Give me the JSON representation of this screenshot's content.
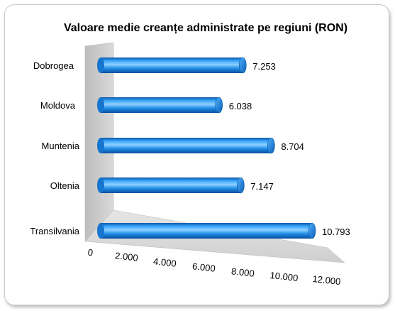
{
  "chart_data": {
    "type": "bar",
    "orientation": "horizontal",
    "title": "Valoare medie creanțe administrate pe regiuni (RON)",
    "categories": [
      "Dobrogea",
      "Moldova",
      "Muntenia",
      "Oltenia",
      "Transilvania"
    ],
    "values": [
      7253,
      6038,
      8704,
      7147,
      10793
    ],
    "value_labels": [
      "7.253",
      "6.038",
      "8.704",
      "7.147",
      "10.793"
    ],
    "xlim": [
      0,
      12000
    ],
    "x_ticks": [
      "0",
      "2.000",
      "4.000",
      "6.000",
      "8.000",
      "10.000",
      "12.000"
    ],
    "grid": false,
    "legend": "none",
    "bar_color": "#1f8fe8",
    "wall_color": "#c8c8c8"
  }
}
